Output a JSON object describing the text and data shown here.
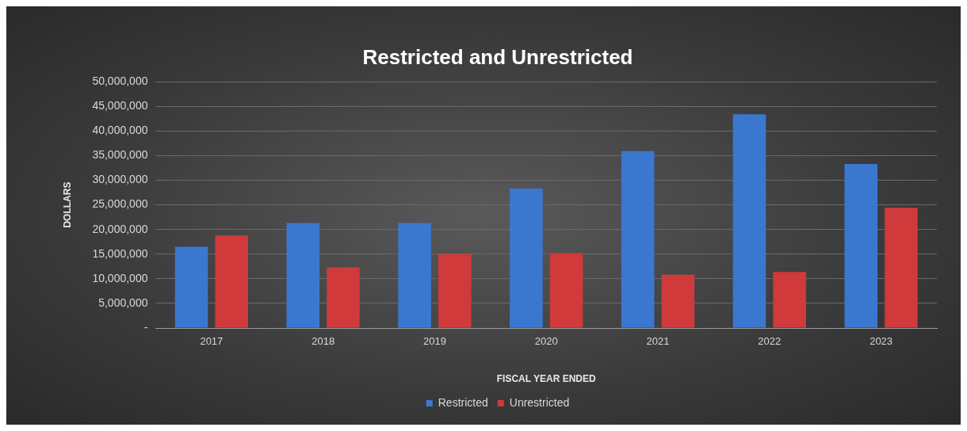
{
  "chart_data": {
    "type": "bar",
    "title": "Restricted and Unrestricted",
    "xlabel": "FISCAL YEAR ENDED",
    "ylabel": "DOLLARS",
    "categories": [
      "2017",
      "2018",
      "2019",
      "2020",
      "2021",
      "2022",
      "2023"
    ],
    "series": [
      {
        "name": "Restricted",
        "color": "#3a78d0",
        "values": [
          16500000,
          21300000,
          21300000,
          28300000,
          35900000,
          43400000,
          33300000
        ]
      },
      {
        "name": "Unrestricted",
        "color": "#d03a3a",
        "values": [
          18800000,
          12300000,
          15000000,
          15200000,
          10800000,
          11400000,
          24400000
        ]
      }
    ],
    "ylim": [
      0,
      50000000
    ],
    "yticks": [
      {
        "value": 0,
        "label": "-"
      },
      {
        "value": 5000000,
        "label": "5,000,000"
      },
      {
        "value": 10000000,
        "label": "10,000,000"
      },
      {
        "value": 15000000,
        "label": "15,000,000"
      },
      {
        "value": 20000000,
        "label": "20,000,000"
      },
      {
        "value": 25000000,
        "label": "25,000,000"
      },
      {
        "value": 30000000,
        "label": "30,000,000"
      },
      {
        "value": 35000000,
        "label": "35,000,000"
      },
      {
        "value": 40000000,
        "label": "40,000,000"
      },
      {
        "value": 45000000,
        "label": "45,000,000"
      },
      {
        "value": 50000000,
        "label": "50,000,000"
      }
    ],
    "grid": "y",
    "legend": "bottom"
  }
}
